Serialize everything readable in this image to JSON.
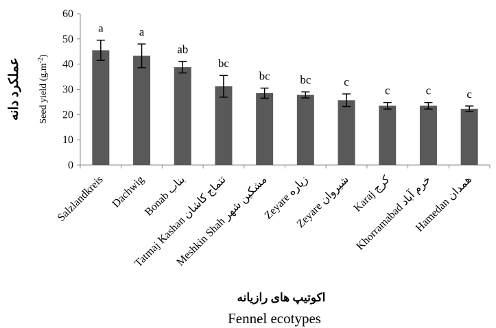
{
  "chart_data": {
    "type": "bar",
    "categories": [
      "Salzlandkreis",
      "Dachwig",
      "Bonab  بناب",
      "Tatmaj Kashan  تتماج کاشان",
      "Meshkin Shah  مشکین شهر",
      "Zeyare  زیاره",
      "Zeyare  شیروان",
      "Karaj  کرج",
      "Khorramabad  خرم آباد",
      "Hamedan  همدان"
    ],
    "values": [
      45.5,
      43.3,
      38.8,
      31.2,
      28.5,
      27.8,
      25.7,
      23.5,
      23.5,
      22.3
    ],
    "errors": [
      4.0,
      4.7,
      2.3,
      4.3,
      2.0,
      1.2,
      2.5,
      1.3,
      1.3,
      1.1
    ],
    "significance": [
      "a",
      "a",
      "ab",
      "bc",
      "bc",
      "bc",
      "c",
      "c",
      "c",
      "c"
    ],
    "ylim": [
      0,
      60
    ],
    "yticks": [
      "0",
      "10",
      "20",
      "30",
      "40",
      "50",
      "60"
    ],
    "ylabel": "Seed yield (g.m-2)",
    "ylabel_secondary": "عملکرد دانه",
    "xlabel_secondary": "اکوتیپ های رازیانه",
    "xlabel": "Fennel ecotypes",
    "bar_color": "#595959",
    "grid": false
  }
}
